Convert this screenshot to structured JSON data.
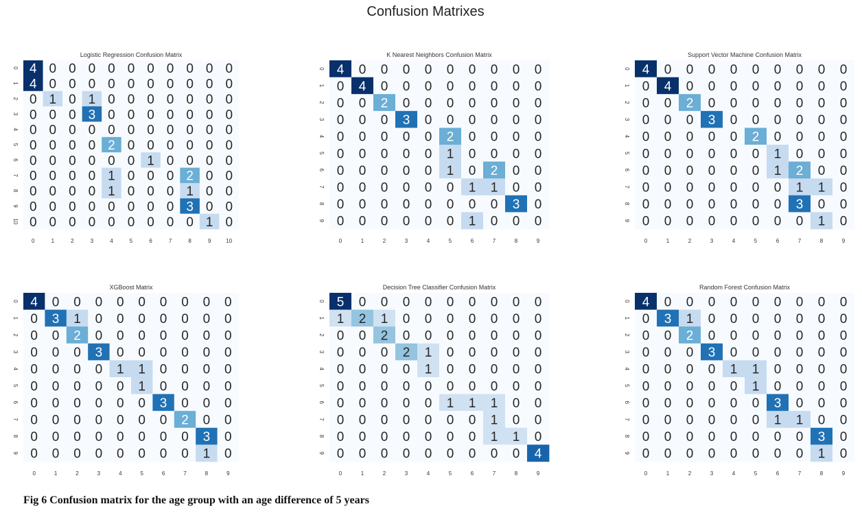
{
  "page_title": "Confusion Matrixes",
  "caption": "Fig 6  Confusion matrix for the age group with an age difference of 5 years",
  "colors": {
    "low": "#f7fbff",
    "high": "#08306b",
    "text_dark": "#262626",
    "text_light": "#ffffff"
  },
  "chart_data": [
    {
      "type": "heatmap",
      "title": "Logistic Regression Confusion Matrix",
      "xticks": [
        "0",
        "1",
        "2",
        "3",
        "4",
        "5",
        "6",
        "7",
        "8",
        "9",
        "10"
      ],
      "yticks": [
        "0",
        "1",
        "2",
        "3",
        "4",
        "5",
        "6",
        "7",
        "8",
        "9",
        "10"
      ],
      "vmax": 4,
      "matrix": [
        [
          4,
          0,
          0,
          0,
          0,
          0,
          0,
          0,
          0,
          0,
          0
        ],
        [
          4,
          0,
          0,
          0,
          0,
          0,
          0,
          0,
          0,
          0,
          0
        ],
        [
          0,
          1,
          0,
          1,
          0,
          0,
          0,
          0,
          0,
          0,
          0
        ],
        [
          0,
          0,
          0,
          3,
          0,
          0,
          0,
          0,
          0,
          0,
          0
        ],
        [
          0,
          0,
          0,
          0,
          0,
          0,
          0,
          0,
          0,
          0,
          0
        ],
        [
          0,
          0,
          0,
          0,
          2,
          0,
          0,
          0,
          0,
          0,
          0
        ],
        [
          0,
          0,
          0,
          0,
          0,
          0,
          1,
          0,
          0,
          0,
          0
        ],
        [
          0,
          0,
          0,
          0,
          1,
          0,
          0,
          0,
          2,
          0,
          0
        ],
        [
          0,
          0,
          0,
          0,
          1,
          0,
          0,
          0,
          1,
          0,
          0
        ],
        [
          0,
          0,
          0,
          0,
          0,
          0,
          0,
          0,
          3,
          0,
          0
        ],
        [
          0,
          0,
          0,
          0,
          0,
          0,
          0,
          0,
          0,
          1,
          0
        ]
      ]
    },
    {
      "type": "heatmap",
      "title": "K Nearest Neighbors Confusion Matrix",
      "xticks": [
        "0",
        "1",
        "2",
        "3",
        "4",
        "5",
        "6",
        "7",
        "8",
        "9"
      ],
      "yticks": [
        "0",
        "1",
        "2",
        "3",
        "4",
        "5",
        "6",
        "7",
        "8",
        "9"
      ],
      "vmax": 4,
      "matrix": [
        [
          4,
          0,
          0,
          0,
          0,
          0,
          0,
          0,
          0,
          0
        ],
        [
          0,
          4,
          0,
          0,
          0,
          0,
          0,
          0,
          0,
          0
        ],
        [
          0,
          0,
          2,
          0,
          0,
          0,
          0,
          0,
          0,
          0
        ],
        [
          0,
          0,
          0,
          3,
          0,
          0,
          0,
          0,
          0,
          0
        ],
        [
          0,
          0,
          0,
          0,
          0,
          2,
          0,
          0,
          0,
          0
        ],
        [
          0,
          0,
          0,
          0,
          0,
          1,
          0,
          0,
          0,
          0
        ],
        [
          0,
          0,
          0,
          0,
          0,
          1,
          0,
          2,
          0,
          0
        ],
        [
          0,
          0,
          0,
          0,
          0,
          0,
          1,
          1,
          0,
          0
        ],
        [
          0,
          0,
          0,
          0,
          0,
          0,
          0,
          0,
          3,
          0
        ],
        [
          0,
          0,
          0,
          0,
          0,
          0,
          1,
          0,
          0,
          0
        ]
      ]
    },
    {
      "type": "heatmap",
      "title": "Support Vector Machine Confusion Matrix",
      "xticks": [
        "0",
        "1",
        "2",
        "3",
        "4",
        "5",
        "6",
        "7",
        "8",
        "9"
      ],
      "yticks": [
        "0",
        "1",
        "2",
        "3",
        "4",
        "5",
        "6",
        "7",
        "8",
        "9"
      ],
      "vmax": 4,
      "matrix": [
        [
          4,
          0,
          0,
          0,
          0,
          0,
          0,
          0,
          0,
          0
        ],
        [
          0,
          4,
          0,
          0,
          0,
          0,
          0,
          0,
          0,
          0
        ],
        [
          0,
          0,
          2,
          0,
          0,
          0,
          0,
          0,
          0,
          0
        ],
        [
          0,
          0,
          0,
          3,
          0,
          0,
          0,
          0,
          0,
          0
        ],
        [
          0,
          0,
          0,
          0,
          0,
          2,
          0,
          0,
          0,
          0
        ],
        [
          0,
          0,
          0,
          0,
          0,
          0,
          1,
          0,
          0,
          0
        ],
        [
          0,
          0,
          0,
          0,
          0,
          0,
          1,
          2,
          0,
          0
        ],
        [
          0,
          0,
          0,
          0,
          0,
          0,
          0,
          1,
          1,
          0
        ],
        [
          0,
          0,
          0,
          0,
          0,
          0,
          0,
          3,
          0,
          0
        ],
        [
          0,
          0,
          0,
          0,
          0,
          0,
          0,
          0,
          1,
          0
        ]
      ]
    },
    {
      "type": "heatmap",
      "title": "XGBoost Matrix",
      "xticks": [
        "0",
        "1",
        "2",
        "3",
        "4",
        "5",
        "6",
        "7",
        "8",
        "9"
      ],
      "yticks": [
        "0",
        "1",
        "2",
        "3",
        "4",
        "5",
        "6",
        "7",
        "8",
        "9"
      ],
      "vmax": 4,
      "matrix": [
        [
          4,
          0,
          0,
          0,
          0,
          0,
          0,
          0,
          0,
          0
        ],
        [
          0,
          3,
          1,
          0,
          0,
          0,
          0,
          0,
          0,
          0
        ],
        [
          0,
          0,
          2,
          0,
          0,
          0,
          0,
          0,
          0,
          0
        ],
        [
          0,
          0,
          0,
          3,
          0,
          0,
          0,
          0,
          0,
          0
        ],
        [
          0,
          0,
          0,
          0,
          1,
          1,
          0,
          0,
          0,
          0
        ],
        [
          0,
          0,
          0,
          0,
          0,
          1,
          0,
          0,
          0,
          0
        ],
        [
          0,
          0,
          0,
          0,
          0,
          0,
          3,
          0,
          0,
          0
        ],
        [
          0,
          0,
          0,
          0,
          0,
          0,
          0,
          2,
          0,
          0
        ],
        [
          0,
          0,
          0,
          0,
          0,
          0,
          0,
          0,
          3,
          0
        ],
        [
          0,
          0,
          0,
          0,
          0,
          0,
          0,
          0,
          1,
          0
        ]
      ]
    },
    {
      "type": "heatmap",
      "title": "Decision Tree Classifier Confusion Matrix",
      "xticks": [
        "0",
        "1",
        "2",
        "3",
        "4",
        "5",
        "6",
        "7",
        "8",
        "9"
      ],
      "yticks": [
        "0",
        "1",
        "2",
        "3",
        "4",
        "5",
        "6",
        "7",
        "8",
        "9"
      ],
      "vmax": 5,
      "matrix": [
        [
          5,
          0,
          0,
          0,
          0,
          0,
          0,
          0,
          0,
          0
        ],
        [
          1,
          2,
          1,
          0,
          0,
          0,
          0,
          0,
          0,
          0
        ],
        [
          0,
          0,
          2,
          0,
          0,
          0,
          0,
          0,
          0,
          0
        ],
        [
          0,
          0,
          0,
          2,
          1,
          0,
          0,
          0,
          0,
          0
        ],
        [
          0,
          0,
          0,
          0,
          1,
          0,
          0,
          0,
          0,
          0
        ],
        [
          0,
          0,
          0,
          0,
          0,
          0,
          0,
          0,
          0,
          0
        ],
        [
          0,
          0,
          0,
          0,
          0,
          1,
          1,
          1,
          0,
          0
        ],
        [
          0,
          0,
          0,
          0,
          0,
          0,
          0,
          1,
          0,
          0
        ],
        [
          0,
          0,
          0,
          0,
          0,
          0,
          0,
          1,
          1,
          0
        ],
        [
          0,
          0,
          0,
          0,
          0,
          0,
          0,
          0,
          0,
          4
        ]
      ]
    },
    {
      "type": "heatmap",
      "title": "Random Forest Confusion Matrix",
      "xticks": [
        "0",
        "1",
        "2",
        "3",
        "4",
        "5",
        "6",
        "7",
        "8",
        "9"
      ],
      "yticks": [
        "0",
        "1",
        "2",
        "3",
        "4",
        "5",
        "6",
        "7",
        "8",
        "9"
      ],
      "vmax": 4,
      "matrix": [
        [
          4,
          0,
          0,
          0,
          0,
          0,
          0,
          0,
          0,
          0
        ],
        [
          0,
          3,
          1,
          0,
          0,
          0,
          0,
          0,
          0,
          0
        ],
        [
          0,
          0,
          2,
          0,
          0,
          0,
          0,
          0,
          0,
          0
        ],
        [
          0,
          0,
          0,
          3,
          0,
          0,
          0,
          0,
          0,
          0
        ],
        [
          0,
          0,
          0,
          0,
          1,
          1,
          0,
          0,
          0,
          0
        ],
        [
          0,
          0,
          0,
          0,
          0,
          1,
          0,
          0,
          0,
          0
        ],
        [
          0,
          0,
          0,
          0,
          0,
          0,
          3,
          0,
          0,
          0
        ],
        [
          0,
          0,
          0,
          0,
          0,
          0,
          1,
          1,
          0,
          0
        ],
        [
          0,
          0,
          0,
          0,
          0,
          0,
          0,
          0,
          3,
          0
        ],
        [
          0,
          0,
          0,
          0,
          0,
          0,
          0,
          0,
          1,
          0
        ]
      ]
    }
  ]
}
